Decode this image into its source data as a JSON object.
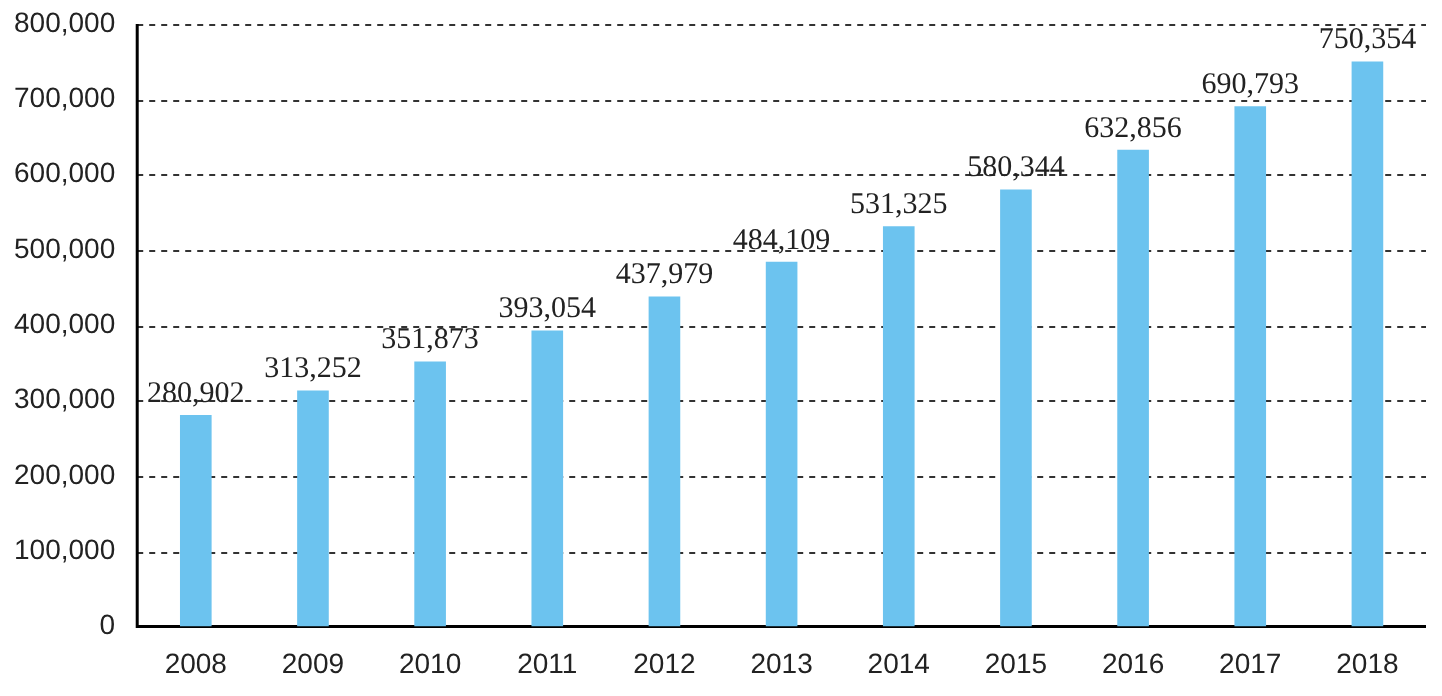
{
  "chart_data": {
    "type": "bar",
    "categories": [
      "2008",
      "2009",
      "2010",
      "2011",
      "2012",
      "2013",
      "2014",
      "2015",
      "2016",
      "2017",
      "2018"
    ],
    "values": [
      280902,
      313252,
      351873,
      393054,
      437979,
      484109,
      531325,
      580344,
      632856,
      690793,
      750354
    ],
    "value_labels": [
      "280,902",
      "313,252",
      "351,873",
      "393,054",
      "437,979",
      "484,109",
      "531,325",
      "580,344",
      "632,856",
      "690,793",
      "750,354"
    ],
    "color": "#6cc3ef",
    "ylim": [
      0,
      800000
    ],
    "yticks": [
      0,
      {
        "value": 100000,
        "label": "100,000"
      },
      {
        "value": 200000,
        "label": "200,000"
      },
      {
        "value": 300000,
        "label": "300,000"
      },
      {
        "value": 400000,
        "label": "400,000"
      },
      {
        "value": 500000,
        "label": "500,000"
      },
      {
        "value": 600000,
        "label": "600,000"
      },
      {
        "value": 700000,
        "label": "700,000"
      },
      {
        "value": 800000,
        "label": "800,000"
      }
    ],
    "grid": "y",
    "legend": false
  }
}
